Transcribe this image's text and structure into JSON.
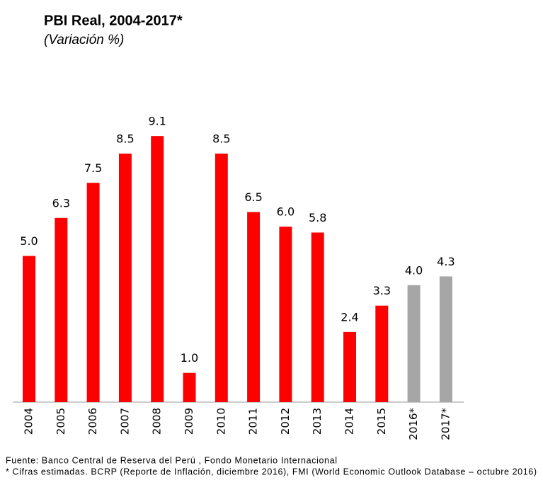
{
  "chart_data": {
    "type": "bar",
    "title": "PBI Real, 2004-2017*",
    "subtitle": "(Variación %)",
    "categories": [
      "2004",
      "2005",
      "2006",
      "2007",
      "2008",
      "2009",
      "2010",
      "2011",
      "2012",
      "2013",
      "2014",
      "2015",
      "2016*",
      "2017*"
    ],
    "values": [
      5.0,
      6.3,
      7.5,
      8.5,
      9.1,
      1.0,
      8.5,
      6.5,
      6.0,
      5.8,
      2.4,
      3.3,
      4.0,
      4.3
    ],
    "value_labels": [
      "5.0",
      "6.3",
      "7.5",
      "8.5",
      "9.1",
      "1.0",
      "8.5",
      "6.5",
      "6.0",
      "5.8",
      "2.4",
      "3.3",
      "4.0",
      "4.3"
    ],
    "colors": [
      "#ff0000",
      "#ff0000",
      "#ff0000",
      "#ff0000",
      "#ff0000",
      "#ff0000",
      "#ff0000",
      "#ff0000",
      "#ff0000",
      "#ff0000",
      "#ff0000",
      "#ff0000",
      "#a6a6a6",
      "#a6a6a6"
    ],
    "ylim": [
      0,
      10
    ],
    "source": "Fuente: Banco Central de Reserva del Perú , Fondo Monetario Internacional",
    "note": "* Cifras estimadas. BCRP (Reporte de Inflación, diciembre 2016), FMI (World Economic Outlook Database – octubre 2016)"
  }
}
